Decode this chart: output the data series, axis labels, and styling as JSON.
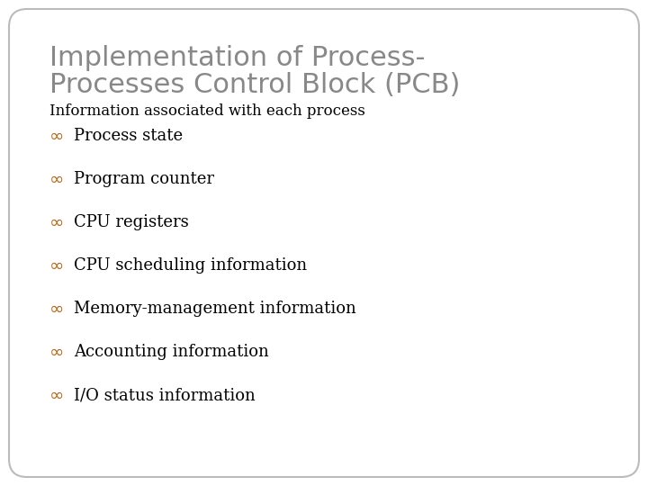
{
  "title_line1": "Implementation of Process-",
  "title_line2": "Processes Control Block (PCB)",
  "subtitle": "Information associated with each process",
  "bullet_items": [
    "Process state",
    "Program counter",
    "CPU registers",
    "CPU scheduling information",
    "Memory-management information",
    "Accounting information",
    "I/O status information"
  ],
  "background_color": "#ffffff",
  "title_color": "#888888",
  "subtitle_color": "#000000",
  "bullet_text_color": "#000000",
  "bullet_symbol_color": "#b5651d",
  "title_fontsize": 22,
  "subtitle_fontsize": 12,
  "bullet_fontsize": 13,
  "border_color": "#bbbbbb",
  "fig_width": 7.2,
  "fig_height": 5.4,
  "fig_dpi": 100
}
